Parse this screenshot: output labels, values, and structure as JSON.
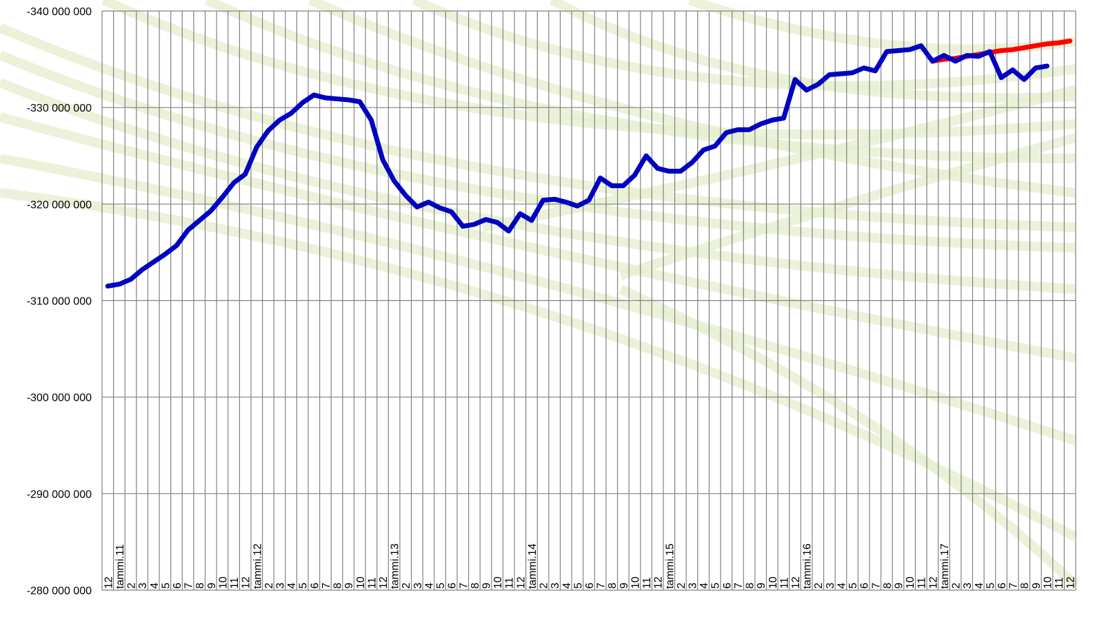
{
  "chart_data": {
    "type": "line",
    "categories": [
      "12",
      "tammi.11",
      "2",
      "3",
      "4",
      "5",
      "6",
      "7",
      "8",
      "9",
      "10",
      "11",
      "12",
      "tammi.12",
      "2",
      "3",
      "4",
      "5",
      "6",
      "7",
      "8",
      "9",
      "10",
      "11",
      "12",
      "tammi.13",
      "2",
      "3",
      "4",
      "5",
      "6",
      "7",
      "8",
      "9",
      "10",
      "11",
      "12",
      "tammi.14",
      "2",
      "3",
      "4",
      "5",
      "6",
      "7",
      "8",
      "9",
      "10",
      "11",
      "12",
      "tammi.15",
      "2",
      "3",
      "4",
      "5",
      "6",
      "7",
      "8",
      "9",
      "10",
      "11",
      "12",
      "tammi.16",
      "2",
      "3",
      "4",
      "5",
      "6",
      "7",
      "8",
      "9",
      "10",
      "11",
      "12",
      "tammi.17",
      "2",
      "3",
      "4",
      "5",
      "6",
      "7",
      "8",
      "9",
      "10",
      "11",
      "12"
    ],
    "series": [
      {
        "color": "#ff0000",
        "values": [
          null,
          null,
          null,
          null,
          null,
          null,
          null,
          null,
          null,
          null,
          null,
          null,
          null,
          null,
          null,
          null,
          null,
          null,
          null,
          null,
          null,
          null,
          null,
          null,
          null,
          null,
          null,
          null,
          null,
          null,
          null,
          null,
          null,
          null,
          null,
          null,
          null,
          null,
          null,
          null,
          null,
          null,
          null,
          null,
          null,
          null,
          null,
          null,
          null,
          null,
          null,
          null,
          null,
          null,
          null,
          null,
          null,
          null,
          null,
          null,
          null,
          null,
          null,
          null,
          null,
          null,
          null,
          null,
          null,
          null,
          null,
          null,
          -334800000,
          -335000000,
          -335100000,
          -335300000,
          -335500000,
          -335700000,
          -335900000,
          -336000000,
          -336200000,
          -336400000,
          -336600000,
          -336700000,
          -336900000
        ]
      },
      {
        "color": "#0000c0",
        "values": [
          -311500000,
          -311700000,
          -312200000,
          -313200000,
          -314000000,
          -314800000,
          -315700000,
          -317300000,
          -318300000,
          -319300000,
          -320700000,
          -322200000,
          -323100000,
          -325900000,
          -327600000,
          -328700000,
          -329400000,
          -330500000,
          -331300000,
          -331000000,
          -330900000,
          -330800000,
          -330600000,
          -328700000,
          -324600000,
          -322400000,
          -320900000,
          -319700000,
          -320200000,
          -319600000,
          -319200000,
          -317700000,
          -317900000,
          -318400000,
          -318100000,
          -317200000,
          -319000000,
          -318300000,
          -320400000,
          -320500000,
          -320200000,
          -319800000,
          -320400000,
          -322700000,
          -321900000,
          -321900000,
          -323000000,
          -325000000,
          -323700000,
          -323400000,
          -323400000,
          -324300000,
          -325600000,
          -326000000,
          -327400000,
          -327700000,
          -327700000,
          -328300000,
          -328700000,
          -328900000,
          -332900000,
          -331800000,
          -332400000,
          -333400000,
          -333500000,
          -333600000,
          -334100000,
          -333800000,
          -335800000,
          -335900000,
          -336000000,
          -336400000,
          -334800000,
          -335400000,
          -334800000,
          -335400000,
          -335300000,
          -335800000,
          -333100000,
          -333900000,
          -332900000,
          -334100000,
          -334300000,
          null,
          null
        ]
      }
    ],
    "ylim": [
      -280000000,
      -340000000
    ],
    "yticks": [
      {
        "value": -340000000,
        "label": "-340 000 000"
      },
      {
        "value": -330000000,
        "label": "-330 000 000"
      },
      {
        "value": -320000000,
        "label": "-320 000 000"
      },
      {
        "value": -310000000,
        "label": "-310 000 000"
      },
      {
        "value": -300000000,
        "label": "-300 000 000"
      },
      {
        "value": -290000000,
        "label": "-290 000 000"
      },
      {
        "value": -280000000,
        "label": "-280 000 000"
      }
    ],
    "grid": true
  }
}
